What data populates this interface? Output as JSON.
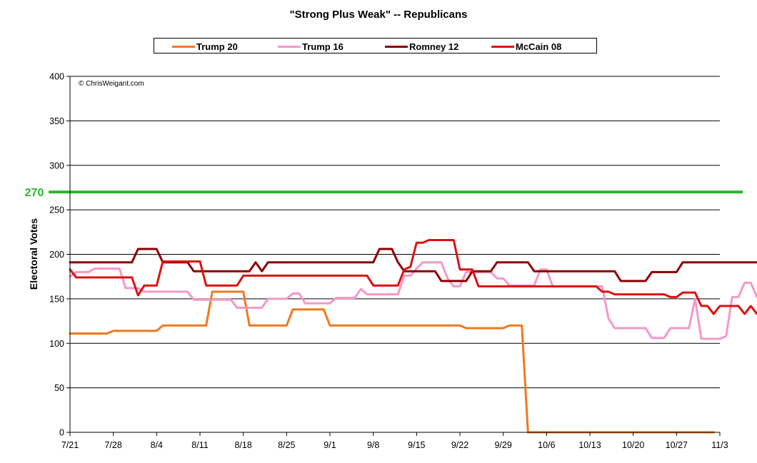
{
  "chart_data": {
    "type": "line",
    "title": "\"Strong Plus Weak\" -- Republicans",
    "xlabel": "",
    "ylabel": "Electoral Votes",
    "ylim": [
      0,
      400
    ],
    "yticks": [
      0,
      50,
      100,
      150,
      200,
      250,
      300,
      350,
      400
    ],
    "xlim": [
      "7/21",
      "11/3"
    ],
    "xticks": [
      "7/21",
      "7/28",
      "8/4",
      "8/11",
      "8/18",
      "8/25",
      "9/1",
      "9/8",
      "9/15",
      "9/22",
      "9/29",
      "10/6",
      "10/13",
      "10/20",
      "10/27",
      "11/3"
    ],
    "grid": "horizontal",
    "legend_position": "top",
    "watermark": "© ChrisWeigant.com",
    "threshold": {
      "value": 270,
      "label": "270",
      "color": "#2db52d"
    },
    "series": [
      {
        "name": "Trump 20",
        "color": "#f07820",
        "points": [
          [
            0,
            111
          ],
          [
            6,
            111
          ],
          [
            7,
            114
          ],
          [
            14,
            114
          ],
          [
            15,
            120
          ],
          [
            22,
            120
          ],
          [
            23,
            158
          ],
          [
            28,
            158
          ],
          [
            29,
            120
          ],
          [
            35,
            120
          ],
          [
            36,
            138
          ],
          [
            41,
            138
          ],
          [
            42,
            120
          ],
          [
            63,
            120
          ],
          [
            64,
            117
          ],
          [
            70,
            117
          ],
          [
            71,
            120
          ],
          [
            73,
            120
          ],
          [
            74,
            0
          ],
          [
            104,
            0
          ]
        ]
      },
      {
        "name": "Trump 16",
        "color": "#f598c8",
        "points": [
          [
            0,
            175
          ],
          [
            1,
            180
          ],
          [
            3,
            180
          ],
          [
            4,
            184
          ],
          [
            8,
            184
          ],
          [
            9,
            162
          ],
          [
            11,
            162
          ],
          [
            12,
            158
          ],
          [
            19,
            158
          ],
          [
            20,
            149
          ],
          [
            26,
            149
          ],
          [
            27,
            140
          ],
          [
            31,
            140
          ],
          [
            32,
            150
          ],
          [
            35,
            150
          ],
          [
            36,
            156
          ],
          [
            37,
            156
          ],
          [
            38,
            145
          ],
          [
            42,
            145
          ],
          [
            43,
            151
          ],
          [
            46,
            151
          ],
          [
            47,
            161
          ],
          [
            48,
            155
          ],
          [
            53,
            155
          ],
          [
            54,
            176
          ],
          [
            55,
            176
          ],
          [
            56,
            184
          ],
          [
            57,
            191
          ],
          [
            60,
            191
          ],
          [
            61,
            173
          ],
          [
            62,
            164
          ],
          [
            63,
            164
          ],
          [
            64,
            180
          ],
          [
            68,
            180
          ],
          [
            69,
            173
          ],
          [
            70,
            173
          ],
          [
            71,
            165
          ],
          [
            75,
            165
          ],
          [
            76,
            183
          ],
          [
            77,
            183
          ],
          [
            78,
            164
          ],
          [
            86,
            164
          ],
          [
            87,
            128
          ],
          [
            88,
            117
          ],
          [
            93,
            117
          ],
          [
            94,
            106
          ],
          [
            96,
            106
          ],
          [
            97,
            117
          ],
          [
            100,
            117
          ],
          [
            101,
            150
          ],
          [
            102,
            105
          ],
          [
            105,
            105
          ],
          [
            106,
            108
          ],
          [
            107,
            152
          ],
          [
            108,
            152
          ],
          [
            109,
            168
          ],
          [
            110,
            168
          ],
          [
            111,
            152
          ],
          [
            112,
            152
          ],
          [
            113,
            160
          ]
        ]
      },
      {
        "name": "Romney 12",
        "color": "#8b0000",
        "points": [
          [
            0,
            191
          ],
          [
            10,
            191
          ],
          [
            11,
            206
          ],
          [
            14,
            206
          ],
          [
            15,
            191
          ],
          [
            19,
            191
          ],
          [
            20,
            181
          ],
          [
            29,
            181
          ],
          [
            30,
            191
          ],
          [
            31,
            181
          ],
          [
            32,
            191
          ],
          [
            49,
            191
          ],
          [
            50,
            206
          ],
          [
            52,
            206
          ],
          [
            53,
            191
          ],
          [
            54,
            181
          ],
          [
            59,
            181
          ],
          [
            60,
            170
          ],
          [
            64,
            170
          ],
          [
            65,
            181
          ],
          [
            68,
            181
          ],
          [
            69,
            191
          ],
          [
            74,
            191
          ],
          [
            75,
            181
          ],
          [
            88,
            181
          ],
          [
            89,
            170
          ],
          [
            93,
            170
          ],
          [
            94,
            180
          ],
          [
            98,
            180
          ],
          [
            99,
            191
          ],
          [
            113,
            191
          ]
        ]
      },
      {
        "name": "McCain 08",
        "color": "#dd1111",
        "points": [
          [
            0,
            183
          ],
          [
            1,
            174
          ],
          [
            10,
            174
          ],
          [
            11,
            154
          ],
          [
            12,
            165
          ],
          [
            14,
            165
          ],
          [
            15,
            192
          ],
          [
            21,
            192
          ],
          [
            22,
            165
          ],
          [
            27,
            165
          ],
          [
            28,
            176
          ],
          [
            48,
            176
          ],
          [
            49,
            165
          ],
          [
            53,
            165
          ],
          [
            54,
            183
          ],
          [
            55,
            186
          ],
          [
            56,
            213
          ],
          [
            57,
            213
          ],
          [
            58,
            216
          ],
          [
            62,
            216
          ],
          [
            63,
            183
          ],
          [
            65,
            183
          ],
          [
            66,
            164
          ],
          [
            85,
            164
          ],
          [
            86,
            158
          ],
          [
            87,
            158
          ],
          [
            88,
            155
          ],
          [
            96,
            155
          ],
          [
            97,
            152
          ],
          [
            98,
            152
          ],
          [
            99,
            157
          ],
          [
            101,
            157
          ],
          [
            102,
            142
          ],
          [
            103,
            142
          ],
          [
            104,
            133
          ],
          [
            105,
            142
          ],
          [
            108,
            142
          ],
          [
            109,
            133
          ],
          [
            110,
            142
          ],
          [
            111,
            133
          ],
          [
            112,
            133
          ]
        ]
      }
    ]
  }
}
